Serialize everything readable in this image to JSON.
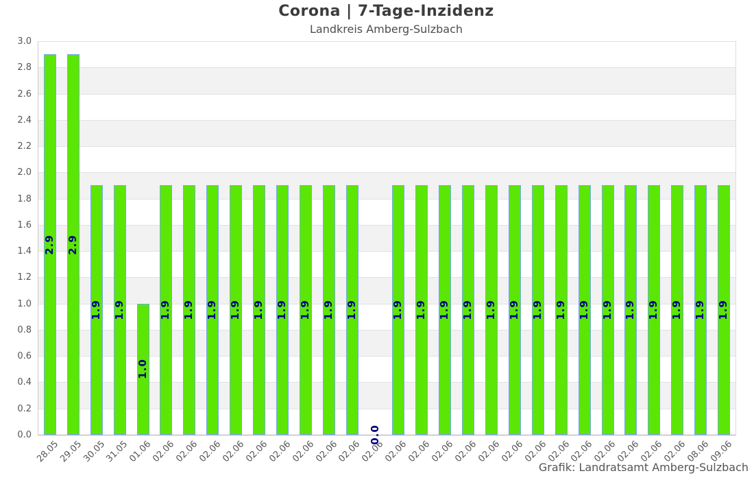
{
  "header": {
    "title": "Corona | 7-Tage-Inzidenz",
    "subtitle": "Landkreis Amberg-Sulzbach"
  },
  "footer": {
    "attribution": "Grafik: Landratsamt Amberg-Sulzbach"
  },
  "chart_data": {
    "type": "bar",
    "title": "Corona | 7-Tage-Inzidenz",
    "subtitle": "Landkreis Amberg-Sulzbach",
    "xlabel": "",
    "ylabel": "",
    "ylim": [
      0,
      3.0
    ],
    "ytick_step": 0.2,
    "yticks": [
      "3.0",
      "2.8",
      "2.6",
      "2.4",
      "2.2",
      "2.0",
      "1.8",
      "1.6",
      "1.4",
      "1.2",
      "1.0",
      "0.8",
      "0.6",
      "0.4",
      "0.2",
      "0.0"
    ],
    "categories": [
      "28.05",
      "29.05",
      "30.05",
      "31.05",
      "01.06",
      "02.06",
      "02.06",
      "02.06",
      "02.06",
      "02.06",
      "02.06",
      "02.06",
      "02.06",
      "02.06",
      "02.06",
      "02.06",
      "02.06",
      "02.06",
      "02.06",
      "02.06",
      "02.06",
      "02.06",
      "02.06",
      "02.06",
      "02.06",
      "02.06",
      "02.06",
      "02.06",
      "08.06",
      "09.06"
    ],
    "values": [
      2.9,
      2.9,
      1.9,
      1.9,
      1.0,
      1.9,
      1.9,
      1.9,
      1.9,
      1.9,
      1.9,
      1.9,
      1.9,
      1.9,
      0.0,
      1.9,
      1.9,
      1.9,
      1.9,
      1.9,
      1.9,
      1.9,
      1.9,
      1.9,
      1.9,
      1.9,
      1.9,
      1.9,
      1.9,
      1.9
    ],
    "value_label_decimals": 1,
    "grid": "horizontal alternating bands, 0.2 step",
    "legend": "none",
    "colors": {
      "bar_fill": "#5ce605",
      "bar_border": "#74aaea",
      "value_label": "#000080",
      "band_even": "#ffffff",
      "band_odd": "#f2f2f2",
      "gridline": "#e2e2e2",
      "tick_label": "#555555",
      "title": "#3c3c3c"
    }
  }
}
